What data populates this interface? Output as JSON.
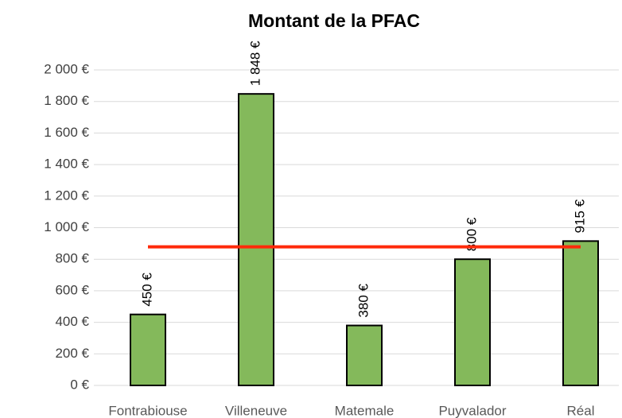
{
  "chart_data": {
    "type": "bar",
    "title": "Montant de la PFAC",
    "categories": [
      "Fontrabiouse",
      "Villeneuve",
      "Matemale",
      "Puyvalador",
      "Réal"
    ],
    "series": [
      {
        "type": "bar",
        "color": "#84b95b",
        "values": [
          450,
          1848,
          380,
          800,
          915
        ],
        "value_labels": [
          "450 €",
          "1 848 €",
          "380 €",
          "800 €",
          "915 €"
        ]
      },
      {
        "type": "line",
        "color": "#ff2a0a",
        "values": [
          878.6,
          878.6,
          878.6,
          878.6,
          878.6
        ]
      }
    ],
    "ylim": [
      0,
      2000
    ],
    "yticks": [
      {
        "value": 0,
        "label": "0 €"
      },
      {
        "value": 200,
        "label": "200 €"
      },
      {
        "value": 400,
        "label": "400 €"
      },
      {
        "value": 600,
        "label": "600 €"
      },
      {
        "value": 800,
        "label": "800 €"
      },
      {
        "value": 1000,
        "label": "1 000 €"
      },
      {
        "value": 1200,
        "label": "1 200 €"
      },
      {
        "value": 1400,
        "label": "1 400 €"
      },
      {
        "value": 1600,
        "label": "1 600 €"
      },
      {
        "value": 1800,
        "label": "1 800 €"
      },
      {
        "value": 2000,
        "label": "2 000 €"
      }
    ],
    "grid": true
  }
}
